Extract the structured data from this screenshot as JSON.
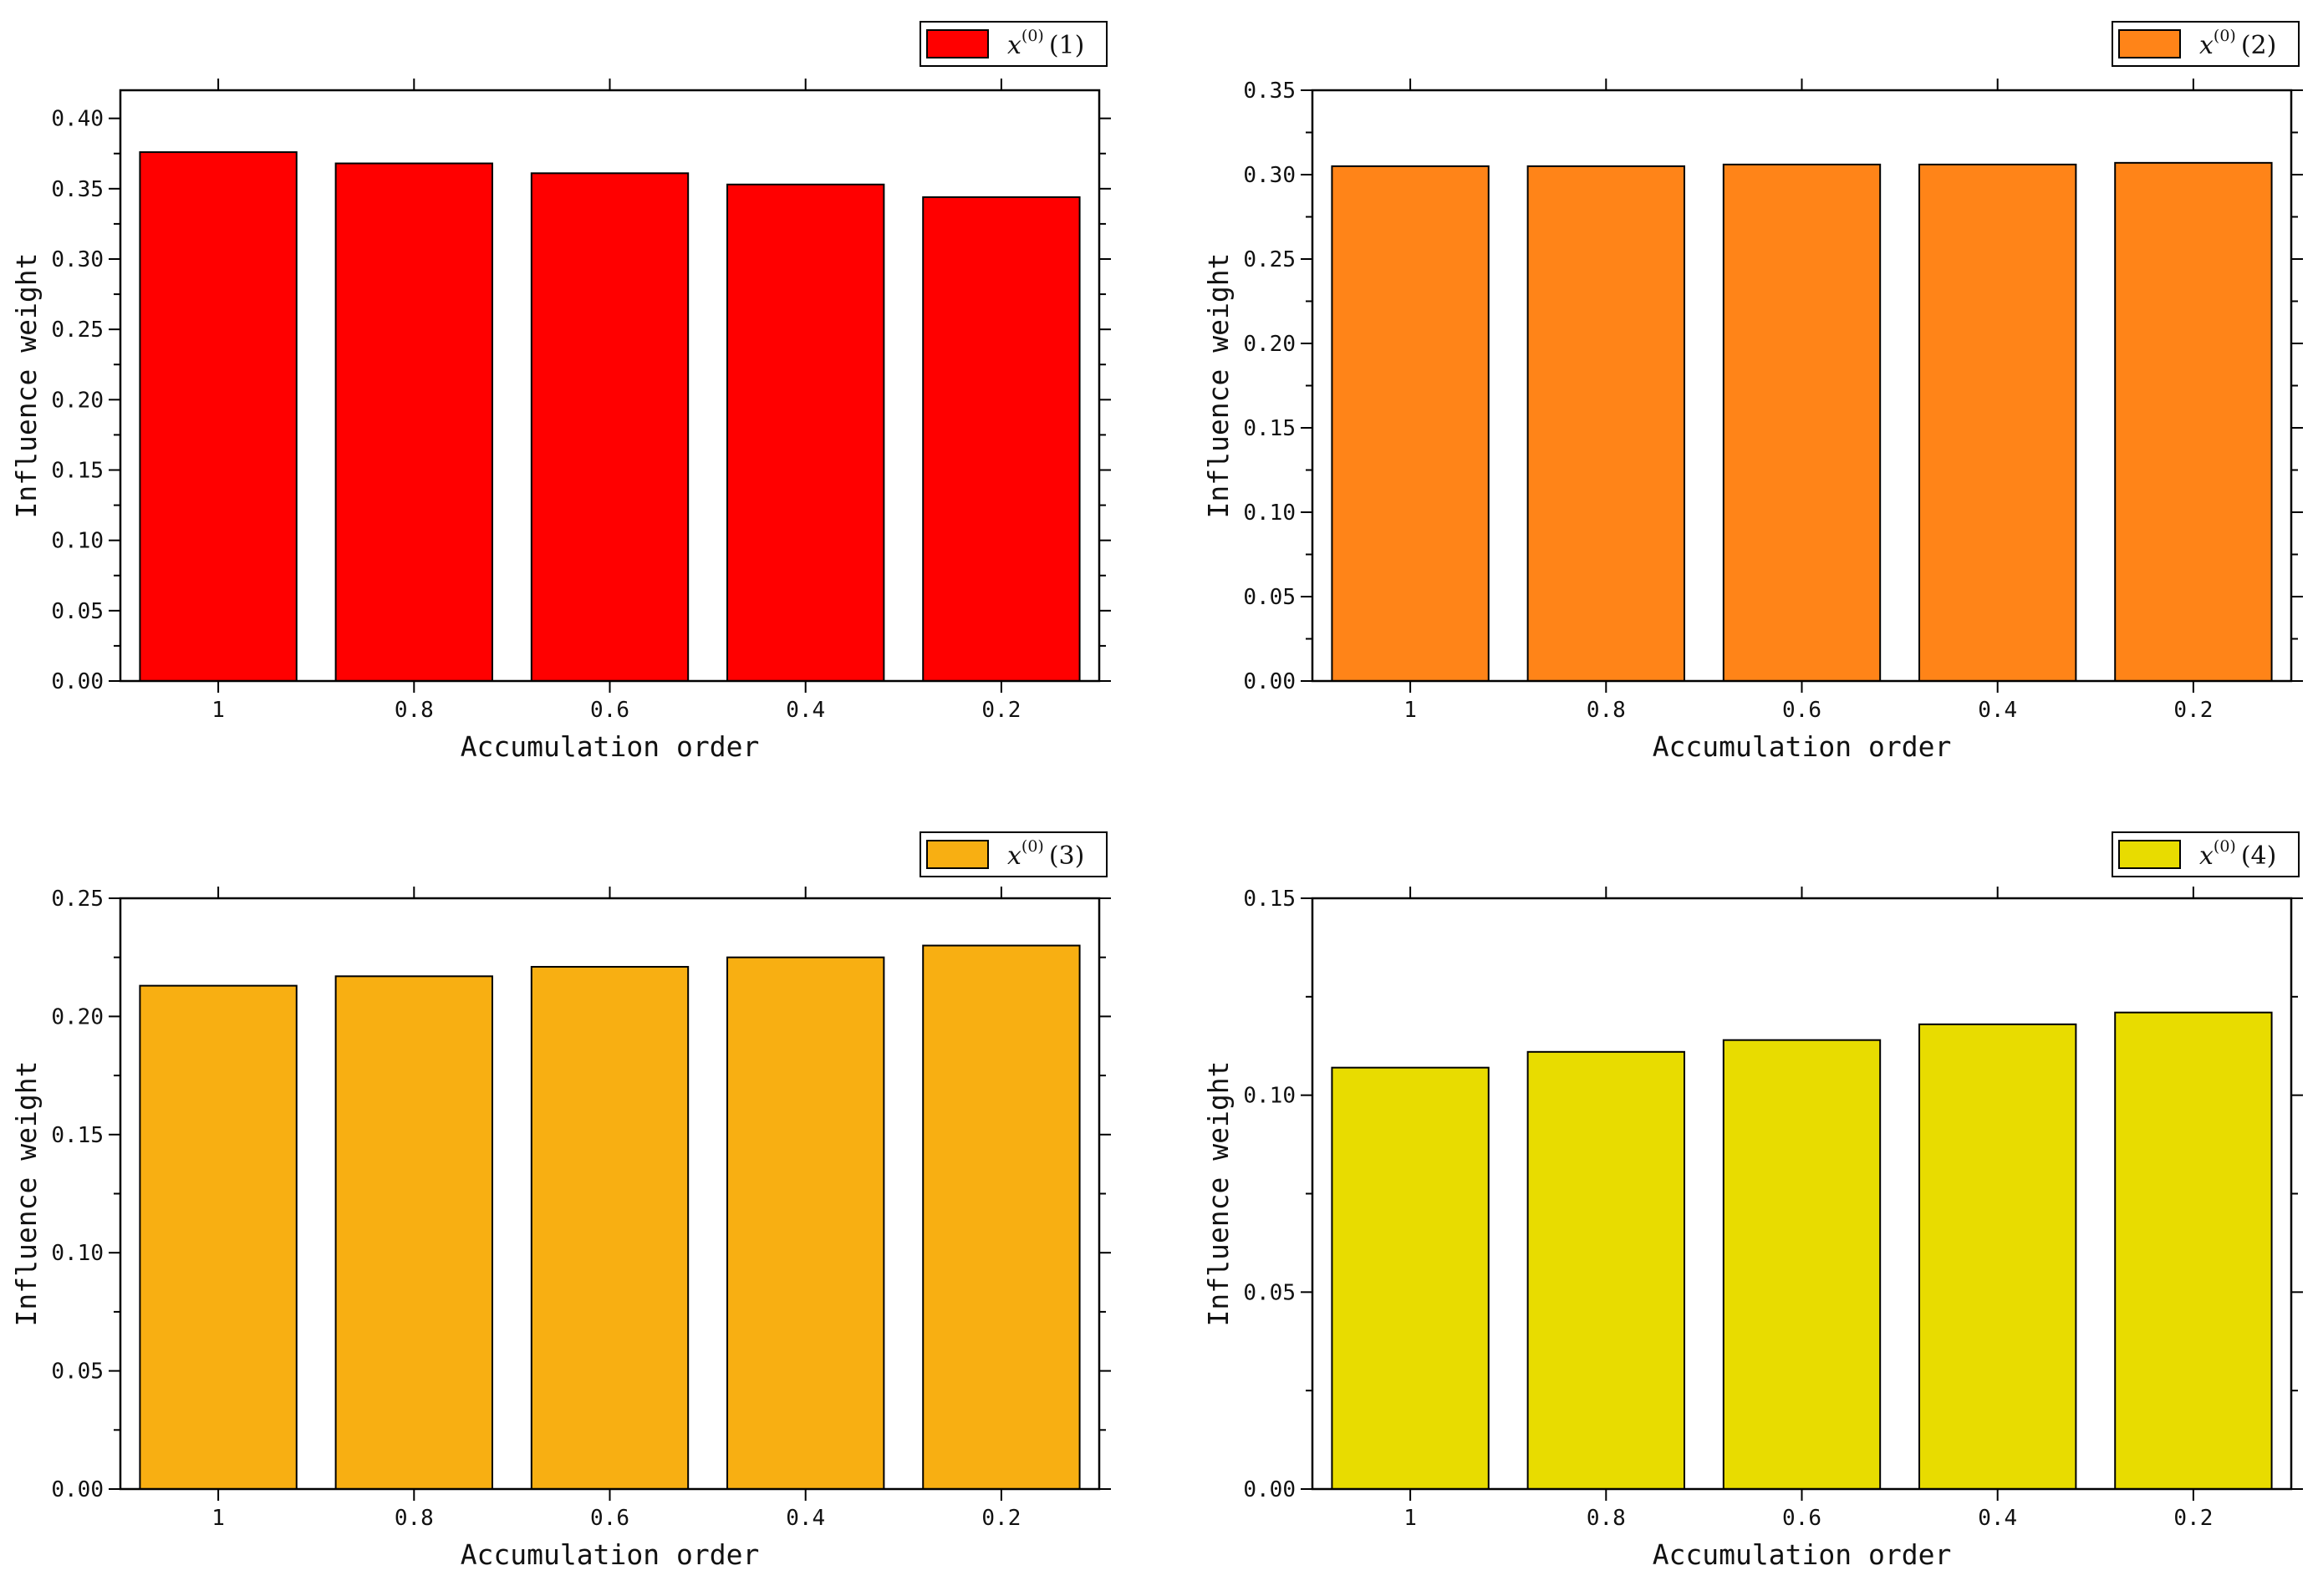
{
  "chart_data": [
    {
      "type": "bar",
      "legend": {
        "var": "x",
        "superscript": "(0)",
        "index": "(1)",
        "position": "top-right"
      },
      "color": "#FF0000",
      "categories": [
        "1",
        "0.8",
        "0.6",
        "0.4",
        "0.2"
      ],
      "values": [
        0.376,
        0.368,
        0.361,
        0.353,
        0.344
      ],
      "xlabel": "Accumulation order",
      "ylabel": "Influence weight",
      "ylim": [
        0,
        0.42
      ],
      "yticks": [
        "0.00",
        "0.05",
        "0.10",
        "0.15",
        "0.20",
        "0.25",
        "0.30",
        "0.35",
        "0.40"
      ],
      "ytick_values": [
        0,
        0.05,
        0.1,
        0.15,
        0.2,
        0.25,
        0.3,
        0.35,
        0.4
      ]
    },
    {
      "type": "bar",
      "legend": {
        "var": "x",
        "superscript": "(0)",
        "index": "(2)",
        "position": "top-right"
      },
      "color": "#FF8418",
      "categories": [
        "1",
        "0.8",
        "0.6",
        "0.4",
        "0.2"
      ],
      "values": [
        0.305,
        0.305,
        0.306,
        0.306,
        0.307
      ],
      "xlabel": "Accumulation order",
      "ylabel": "Influence weight",
      "ylim": [
        0,
        0.35
      ],
      "yticks": [
        "0.00",
        "0.05",
        "0.10",
        "0.15",
        "0.20",
        "0.25",
        "0.30",
        "0.35"
      ],
      "ytick_values": [
        0,
        0.05,
        0.1,
        0.15,
        0.2,
        0.25,
        0.3,
        0.35
      ]
    },
    {
      "type": "bar",
      "legend": {
        "var": "x",
        "superscript": "(0)",
        "index": "(3)",
        "position": "top-right"
      },
      "color": "#F8AF12",
      "categories": [
        "1",
        "0.8",
        "0.6",
        "0.4",
        "0.2"
      ],
      "values": [
        0.213,
        0.217,
        0.221,
        0.225,
        0.23
      ],
      "xlabel": "Accumulation order",
      "ylabel": "Influence weight",
      "ylim": [
        0,
        0.25
      ],
      "yticks": [
        "0.00",
        "0.05",
        "0.10",
        "0.15",
        "0.20",
        "0.25"
      ],
      "ytick_values": [
        0,
        0.05,
        0.1,
        0.15,
        0.2,
        0.25
      ]
    },
    {
      "type": "bar",
      "legend": {
        "var": "x",
        "superscript": "(0)",
        "index": "(4)",
        "position": "top-right"
      },
      "color": "#E8DC00",
      "categories": [
        "1",
        "0.8",
        "0.6",
        "0.4",
        "0.2"
      ],
      "values": [
        0.107,
        0.111,
        0.114,
        0.118,
        0.121
      ],
      "xlabel": "Accumulation order",
      "ylabel": "Influence weight",
      "ylim": [
        0,
        0.15
      ],
      "yticks": [
        "0.00",
        "0.05",
        "0.10",
        "0.15"
      ],
      "ytick_values": [
        0,
        0.05,
        0.1,
        0.15
      ]
    }
  ]
}
